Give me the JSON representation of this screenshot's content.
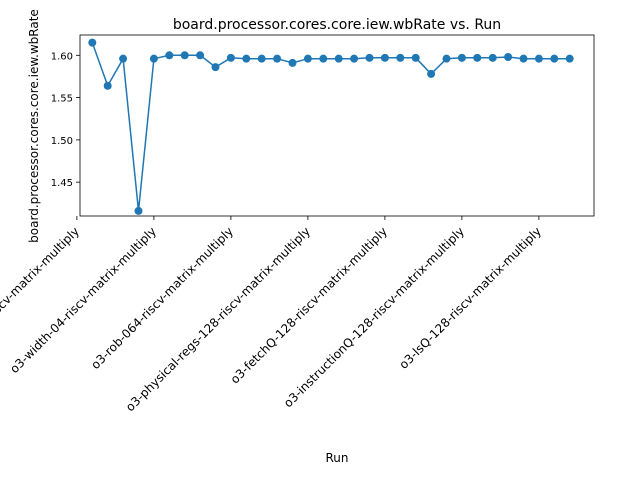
{
  "chart_data": {
    "type": "line",
    "title": "board.processor.cores.core.iew.wbRate vs. Run",
    "xlabel": "Run",
    "ylabel": "board.processor.cores.core.iew.wbRate",
    "x_tick_labels": [
      "inorder-riscv-matrix-multiply",
      "o3-width-04-riscv-matrix-multiply",
      "o3-rob-064-riscv-matrix-multiply",
      "o3-physical-regs-128-riscv-matrix-multiply",
      "o3-fetchQ-128-riscv-matrix-multiply",
      "o3-instructionQ-128-riscv-matrix-multiply",
      "o3-lsQ-128-riscv-matrix-multiply"
    ],
    "y_ticks": [
      "1.45",
      "1.50",
      "1.55",
      "1.60"
    ],
    "ylim": [
      1.41,
      1.624
    ],
    "x": [
      1,
      2,
      3,
      4,
      5,
      6,
      7,
      8,
      9,
      10,
      11,
      12,
      13,
      14,
      15,
      16,
      17,
      18,
      19,
      20,
      21,
      22,
      23,
      24,
      25,
      26,
      27,
      28,
      29,
      30,
      31,
      32
    ],
    "values": [
      1.615,
      1.564,
      1.596,
      1.416,
      1.596,
      1.6,
      1.6,
      1.6,
      1.586,
      1.597,
      1.596,
      1.596,
      1.596,
      1.591,
      1.596,
      1.596,
      1.596,
      1.596,
      1.597,
      1.597,
      1.597,
      1.597,
      1.578,
      1.596,
      1.597,
      1.597,
      1.597,
      1.598,
      1.596,
      1.596,
      1.596,
      1.596
    ],
    "line_color": "#1f77b4",
    "grid": false,
    "legend": "none"
  }
}
